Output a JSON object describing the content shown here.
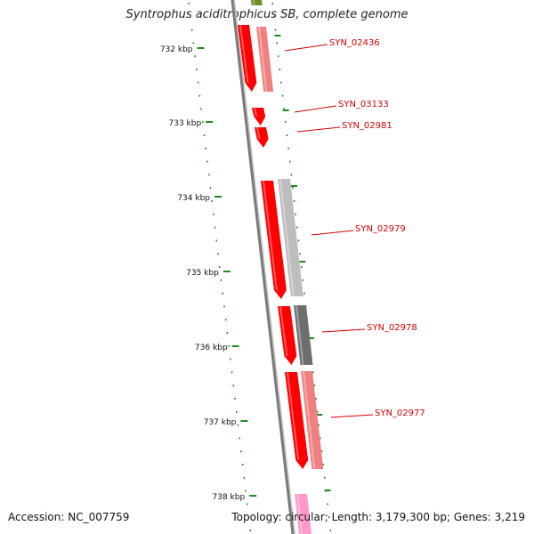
{
  "title": "Syntrophus aciditrophicus SB, complete genome",
  "accession": "Accession: NC_007759",
  "summary": "Topology: circular; Length: 3,179,300 bp; Genes: 3,219",
  "colors": {
    "backbone": "#7a7a7a",
    "tick": "#1e8a1e",
    "label": "#d40000",
    "leader": "#d40000",
    "gene_forward": "#ff0000",
    "gene_blast_light": "#f08080",
    "gene_blast_gray": "#bdbdbd",
    "gene_blast_dark": "#6e6e6e",
    "gene_pink": "#ff99cc",
    "gene_olive": "#6b8e23"
  },
  "scale_labels": [
    "732 kbp",
    "733 kbp",
    "734 kbp",
    "735 kbp",
    "736 kbp",
    "737 kbp",
    "738 kbp"
  ],
  "gene_labels": [
    "SYN_02436",
    "SYN_03133",
    "SYN_02981",
    "SYN_02979",
    "SYN_02978",
    "SYN_02977"
  ]
}
